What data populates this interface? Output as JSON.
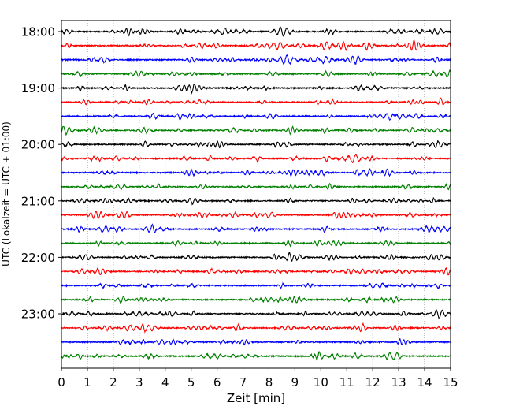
{
  "chart_data": {
    "type": "line",
    "title": "",
    "xlabel": "Zeit  [min]",
    "ylabel": "UTC (Lokalzeit = UTC + 01:00)",
    "xlim": [
      0,
      15
    ],
    "x_ticks": [
      "0",
      "1",
      "2",
      "3",
      "4",
      "5",
      "6",
      "7",
      "8",
      "9",
      "10",
      "11",
      "12",
      "13",
      "14",
      "15"
    ],
    "y_tick_labels": [
      "18:00",
      "19:00",
      "20:00",
      "21:00",
      "22:00",
      "23:00"
    ],
    "grid": "vertical-dotted",
    "trace_count": 24,
    "trace_interval_minutes": 15,
    "trace_colors": [
      "#000000",
      "#ff0000",
      "#0000ff",
      "#008000"
    ],
    "legend": "none"
  }
}
